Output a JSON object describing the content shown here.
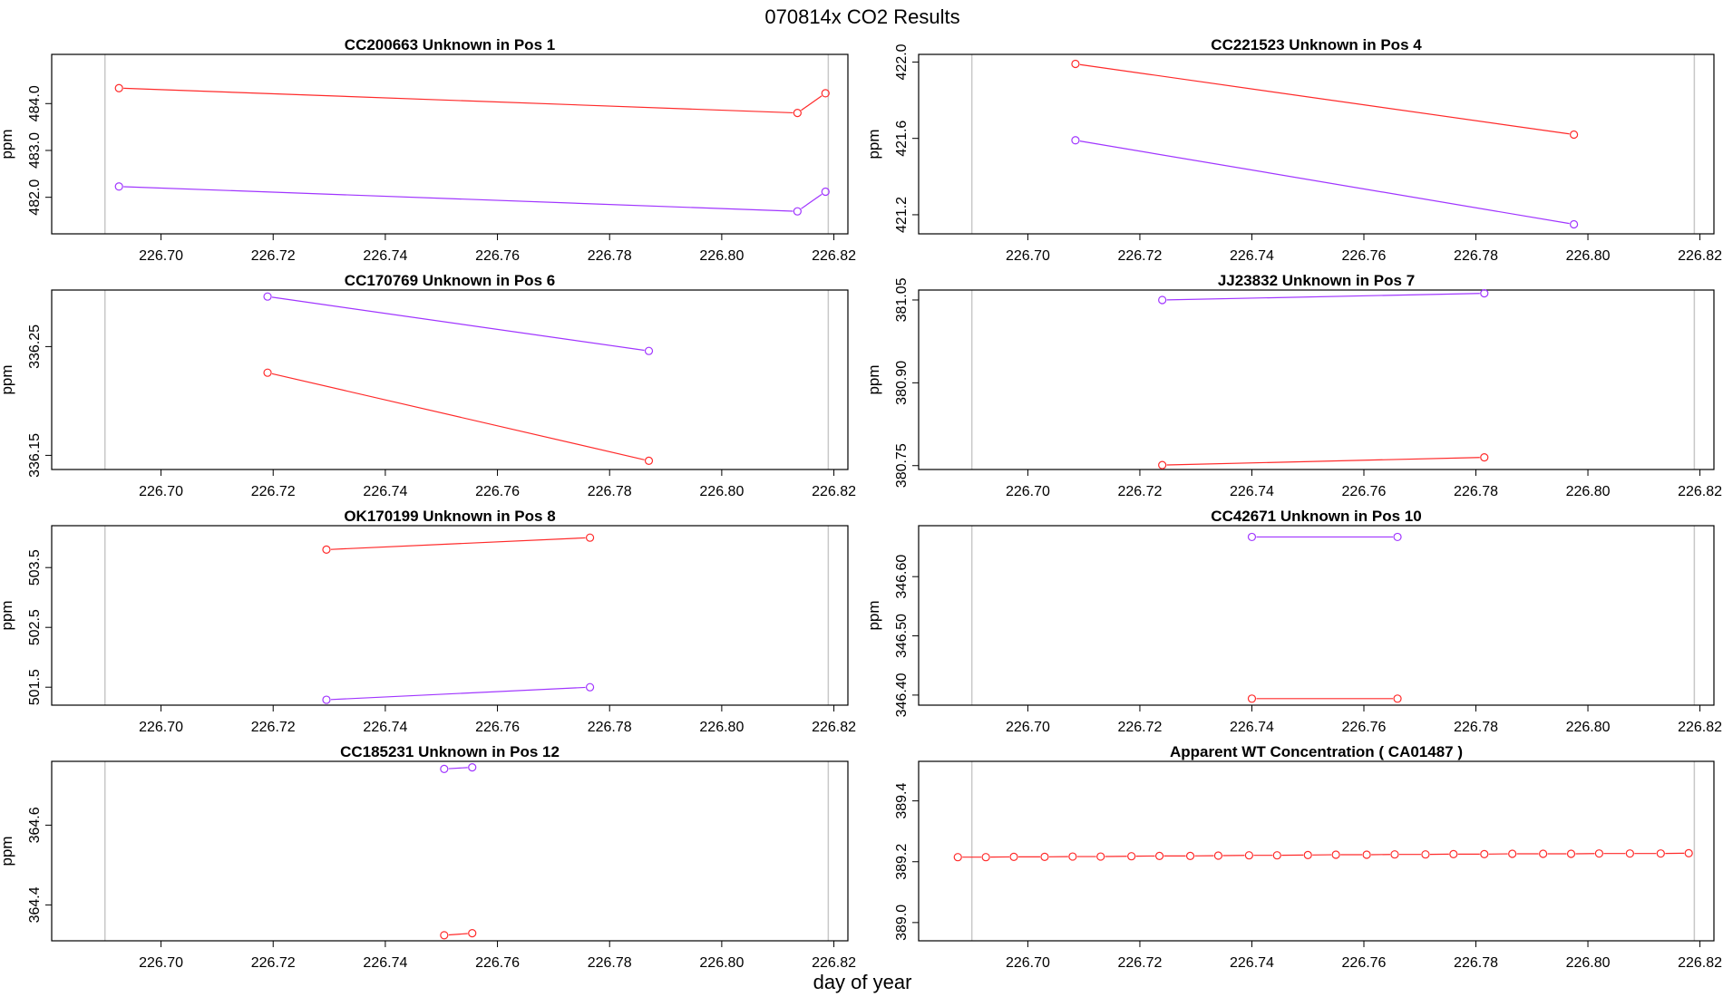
{
  "title": "070814x  CO2 Results",
  "xlabel": "day of year",
  "colors": {
    "red": "#ff2a2a",
    "purple": "#a035ff",
    "guide": "#c8c8c8",
    "frame": "#000000"
  },
  "xaxis": {
    "range": [
      226.6805,
      226.8225
    ],
    "ticks": [
      226.7,
      226.72,
      226.74,
      226.76,
      226.78,
      226.8,
      226.82
    ],
    "tick_labels": [
      "226.70",
      "226.72",
      "226.74",
      "226.76",
      "226.78",
      "226.80",
      "226.82"
    ],
    "guide_lines": [
      226.69,
      226.819
    ]
  },
  "chart_data": [
    {
      "type": "line",
      "title": "CC200663    Unknown in Pos 1",
      "ylabel": "ppm",
      "ylim": [
        481.22,
        485.05
      ],
      "yticks": [
        482.0,
        483.0,
        484.0
      ],
      "ytick_labels": [
        "482.0",
        "483.0",
        "484.0"
      ],
      "series": [
        {
          "name": "red",
          "color": "red",
          "x": [
            226.6925,
            226.8135,
            226.8185
          ],
          "y": [
            484.33,
            483.8,
            484.22
          ]
        },
        {
          "name": "purple",
          "color": "purple",
          "x": [
            226.6925,
            226.8135,
            226.8185
          ],
          "y": [
            482.23,
            481.7,
            482.12
          ]
        }
      ]
    },
    {
      "type": "line",
      "title": "CC221523    Unknown in Pos 4",
      "ylabel": "ppm",
      "ylim": [
        421.1,
        422.04
      ],
      "yticks": [
        421.2,
        421.6,
        422.0
      ],
      "ytick_labels": [
        "421.2",
        "421.6",
        "422.0"
      ],
      "series": [
        {
          "name": "red",
          "color": "red",
          "x": [
            226.7085,
            226.7975
          ],
          "y": [
            421.99,
            421.62
          ]
        },
        {
          "name": "purple",
          "color": "purple",
          "x": [
            226.7085,
            226.7975
          ],
          "y": [
            421.59,
            421.15
          ]
        }
      ]
    },
    {
      "type": "line",
      "title": "CC170769    Unknown in Pos 6",
      "ylabel": "ppm",
      "ylim": [
        336.137,
        336.302
      ],
      "yticks": [
        336.15,
        336.25
      ],
      "ytick_labels": [
        "336.15",
        "336.25"
      ],
      "series": [
        {
          "name": "purple",
          "color": "purple",
          "x": [
            226.719,
            226.787
          ],
          "y": [
            336.296,
            336.246
          ]
        },
        {
          "name": "red",
          "color": "red",
          "x": [
            226.719,
            226.787
          ],
          "y": [
            336.226,
            336.145
          ]
        }
      ]
    },
    {
      "type": "line",
      "title": "JJ23832    Unknown in Pos 7",
      "ylabel": "ppm",
      "ylim": [
        380.743,
        381.068
      ],
      "yticks": [
        380.75,
        380.9,
        381.05
      ],
      "ytick_labels": [
        "380.75",
        "380.90",
        "381.05"
      ],
      "series": [
        {
          "name": "purple",
          "color": "purple",
          "x": [
            226.724,
            226.7815
          ],
          "y": [
            381.05,
            381.062
          ]
        },
        {
          "name": "red",
          "color": "red",
          "x": [
            226.724,
            226.7815
          ],
          "y": [
            380.751,
            380.765
          ]
        }
      ]
    },
    {
      "type": "line",
      "title": "OK170199    Unknown in Pos 8",
      "ylabel": "ppm",
      "ylim": [
        501.2,
        504.2
      ],
      "yticks": [
        501.5,
        502.5,
        503.5
      ],
      "ytick_labels": [
        "501.5",
        "502.5",
        "503.5"
      ],
      "series": [
        {
          "name": "red",
          "color": "red",
          "x": [
            226.7295,
            226.7765
          ],
          "y": [
            503.8,
            504.0
          ]
        },
        {
          "name": "purple",
          "color": "purple",
          "x": [
            226.7295,
            226.7765
          ],
          "y": [
            501.29,
            501.5
          ]
        }
      ]
    },
    {
      "type": "line",
      "title": "CC42671    Unknown in Pos 10",
      "ylabel": "ppm",
      "ylim": [
        346.383,
        346.686
      ],
      "yticks": [
        346.4,
        346.5,
        346.6
      ],
      "ytick_labels": [
        "346.40",
        "346.50",
        "346.60"
      ],
      "series": [
        {
          "name": "purple",
          "color": "purple",
          "x": [
            226.74,
            226.766
          ],
          "y": [
            346.667,
            346.667
          ]
        },
        {
          "name": "red",
          "color": "red",
          "x": [
            226.74,
            226.766
          ],
          "y": [
            346.394,
            346.394
          ]
        }
      ]
    },
    {
      "type": "line",
      "title": "CC185231    Unknown in Pos 12",
      "ylabel": "ppm",
      "ylim": [
        364.31,
        364.76
      ],
      "yticks": [
        364.4,
        364.6
      ],
      "ytick_labels": [
        "364.4",
        "364.6"
      ],
      "series": [
        {
          "name": "purple",
          "color": "purple",
          "x": [
            226.7505,
            226.7555
          ],
          "y": [
            364.741,
            364.745
          ]
        },
        {
          "name": "red",
          "color": "red",
          "x": [
            226.7505,
            226.7555
          ],
          "y": [
            364.324,
            364.329
          ]
        }
      ]
    },
    {
      "type": "line",
      "title": "Apparent WT Concentration ( CA01487 )",
      "ylabel": "",
      "ylim": [
        388.94,
        389.53
      ],
      "yticks": [
        389.0,
        389.2,
        389.4
      ],
      "ytick_labels": [
        "389.0",
        "389.2",
        "389.4"
      ],
      "series": [
        {
          "name": "red",
          "color": "red",
          "x": [
            226.6875,
            226.6925,
            226.6975,
            226.703,
            226.708,
            226.713,
            226.7185,
            226.7235,
            226.729,
            226.734,
            226.7395,
            226.7445,
            226.75,
            226.755,
            226.7605,
            226.7655,
            226.771,
            226.776,
            226.7815,
            226.7865,
            226.792,
            226.797,
            226.802,
            226.8075,
            226.813,
            226.818
          ],
          "y": [
            389.215,
            389.215,
            389.216,
            389.216,
            389.217,
            389.217,
            389.218,
            389.219,
            389.219,
            389.22,
            389.221,
            389.221,
            389.222,
            389.223,
            389.223,
            389.224,
            389.224,
            389.225,
            389.225,
            389.226,
            389.226,
            389.226,
            389.227,
            389.227,
            389.227,
            389.228
          ]
        }
      ]
    }
  ]
}
